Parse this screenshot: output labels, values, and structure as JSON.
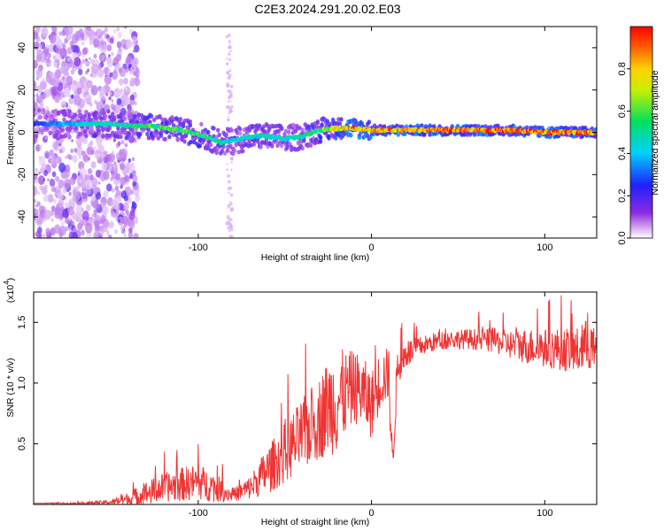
{
  "title": "C2E3.2024.291.20.02.E03",
  "colors": {
    "axis": "#000000",
    "snr_line": "#ef3434",
    "spectrogram_background": "#ffffff"
  },
  "chart_data": [
    {
      "type": "heatmap",
      "name": "spectrogram",
      "xlabel": "Height of straight line (km)",
      "ylabel": "Frequency (Hz)",
      "xlim": [
        -195,
        130
      ],
      "ylim": [
        -50,
        50
      ],
      "x_ticks": [
        -100,
        0,
        100
      ],
      "y_ticks": [
        -40,
        -20,
        0,
        20,
        40
      ],
      "grid": false,
      "colorscale": "rainbow (light violet to red)",
      "colorbar": {
        "label": "Normalized spectral amplitude",
        "range": [
          0,
          1
        ],
        "ticks": [
          "0.0",
          "0.2",
          "0.4",
          "0.6",
          "0.8"
        ]
      },
      "ridge": {
        "x": [
          -190,
          -175,
          -160,
          -150,
          -140,
          -130,
          -120,
          -110,
          -100,
          -90,
          -85,
          -80,
          -70,
          -60,
          -50,
          -40,
          -30,
          -20,
          -10,
          0,
          20,
          40,
          60,
          80,
          100,
          120,
          130
        ],
        "y": [
          4,
          4,
          4,
          4,
          3,
          3,
          2,
          1,
          -1,
          -4,
          -5,
          -4,
          -2,
          -2,
          -3,
          -2,
          1,
          2,
          2,
          1,
          1,
          1,
          1,
          1,
          0,
          0,
          0
        ],
        "amplitude": [
          0.3,
          0.4,
          0.5,
          0.5,
          0.55,
          0.6,
          0.6,
          0.6,
          0.6,
          0.55,
          0.5,
          0.45,
          0.5,
          0.5,
          0.45,
          0.5,
          0.6,
          0.8,
          0.9,
          0.85,
          0.9,
          0.95,
          0.95,
          0.95,
          0.95,
          0.9,
          0.9
        ]
      }
    },
    {
      "type": "line",
      "name": "snr",
      "xlabel": "Height of straight line (km)",
      "ylabel": "SNR (10 * v/v)",
      "y_multiplier_label": "(x10",
      "y_multiplier_exponent": "4",
      "y_multiplier_close": ")",
      "xlim": [
        -195,
        130
      ],
      "ylim": [
        0,
        1.75
      ],
      "x_ticks": [
        -100,
        0,
        100
      ],
      "y_ticks": [
        0.5,
        1.0,
        1.5
      ],
      "y_tick_labels": [
        "0.5",
        "1.0",
        "1.5"
      ],
      "grid": false,
      "series": [
        {
          "color": "#ef3434",
          "envelope": {
            "x": [
              -195,
              -170,
              -150,
              -140,
              -130,
              -120,
              -110,
              -100,
              -90,
              -80,
              -70,
              -60,
              -50,
              -40,
              -30,
              -25,
              -20,
              -15,
              -10,
              -5,
              0,
              5,
              10,
              12,
              15,
              20,
              30,
              40,
              50,
              60,
              70,
              80,
              90,
              100,
              110,
              120,
              125,
              130
            ],
            "y": [
              0.01,
              0.01,
              0.02,
              0.05,
              0.1,
              0.15,
              0.18,
              0.2,
              0.15,
              0.08,
              0.15,
              0.3,
              0.45,
              0.6,
              0.75,
              0.85,
              0.9,
              0.95,
              1.0,
              0.95,
              0.85,
              1.05,
              1.1,
              0.35,
              1.15,
              1.25,
              1.32,
              1.36,
              1.37,
              1.37,
              1.36,
              1.33,
              1.32,
              1.3,
              1.3,
              1.28,
              1.35,
              1.25
            ],
            "noise": [
              0.0,
              0.01,
              0.02,
              0.06,
              0.1,
              0.12,
              0.14,
              0.15,
              0.12,
              0.05,
              0.1,
              0.2,
              0.25,
              0.3,
              0.35,
              0.4,
              0.45,
              0.35,
              0.3,
              0.3,
              0.28,
              0.25,
              0.22,
              0.2,
              0.15,
              0.12,
              0.08,
              0.08,
              0.08,
              0.09,
              0.1,
              0.12,
              0.15,
              0.16,
              0.18,
              0.2,
              0.22,
              0.18
            ]
          }
        }
      ]
    }
  ]
}
